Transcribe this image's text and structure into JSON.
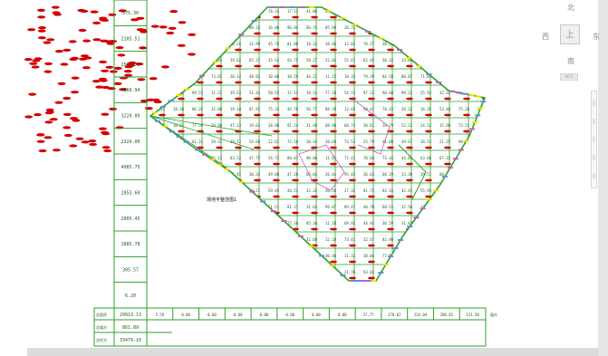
{
  "viewcube": {
    "north": "北",
    "south": "南",
    "east": "东",
    "west": "西",
    "top": "上",
    "wcs": "WCS"
  },
  "column_values": [
    "375.30",
    "2105.51",
    "2503.75",
    "4566.94",
    "3220.89",
    "2324.00",
    "4985.75",
    "2853.60",
    "2005.45",
    "1885.78",
    "305.57",
    "6.20"
  ],
  "summary": {
    "labels": [
      "总面积",
      "总填方",
      "总挖方"
    ],
    "values": [
      "29913.13",
      "861.89",
      "33479.10"
    ]
  },
  "bottom_row": {
    "cells": [
      "5.59",
      "0.00",
      "0.00",
      "0.00",
      "0.00",
      "0.00",
      "0.00",
      "0.00",
      "37.77",
      "178.62",
      "224.04",
      "280.82",
      "121.50"
    ],
    "tail": "填方"
  },
  "site_label": "场地平整范围1",
  "colors": {
    "grid": "#2ea02e",
    "grid_text": "#1c5c1c",
    "markers": "#d40000",
    "accent_yellow": "#e8e800",
    "accent_magenta": "#c060c0",
    "accent_blue": "#6090e0",
    "background": "#ffffff"
  }
}
